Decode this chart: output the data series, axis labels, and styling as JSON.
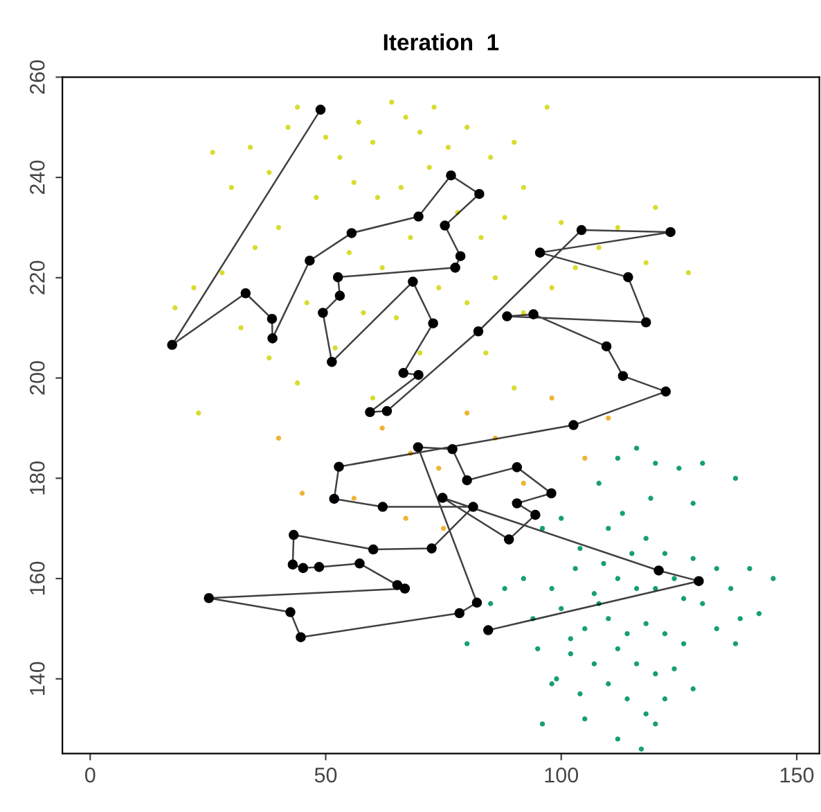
{
  "chart_data": {
    "type": "scatter",
    "title": "Iteration  1",
    "xlim": [
      -5.9,
      154.8
    ],
    "ylim": [
      125.1,
      260
    ],
    "xticks": [
      0,
      50,
      100,
      150
    ],
    "yticks": [
      140,
      160,
      180,
      200,
      220,
      240,
      260
    ],
    "grid": false,
    "legend": false,
    "series": [
      {
        "color": "#d9dc30",
        "x": [
          26,
          30,
          34,
          38,
          42,
          44,
          50,
          53,
          57,
          60,
          64,
          67,
          70,
          73,
          76,
          80,
          85,
          90,
          97,
          92,
          88,
          83,
          78,
          72,
          66,
          61,
          56,
          48,
          40,
          35,
          28,
          22,
          18,
          32,
          38,
          44,
          52,
          58,
          62,
          68,
          74,
          80,
          86,
          92,
          98,
          103,
          108,
          112,
          118,
          127,
          120,
          100,
          65,
          70,
          55,
          46,
          23,
          60,
          84,
          90
        ],
        "values": [
          245,
          238,
          246,
          241,
          250,
          254,
          248,
          244,
          251,
          247,
          255,
          252,
          249,
          254,
          246,
          250,
          244,
          247,
          254,
          238,
          232,
          228,
          233,
          242,
          238,
          236,
          239,
          236,
          230,
          226,
          221,
          218,
          214,
          210,
          204,
          199,
          206,
          213,
          222,
          228,
          218,
          215,
          220,
          213,
          218,
          222,
          226,
          230,
          223,
          221,
          234,
          231,
          212,
          205,
          225,
          215,
          193,
          196,
          205,
          198
        ]
      },
      {
        "color": "#f0b434",
        "x": [
          62,
          68,
          74,
          80,
          86,
          92,
          98,
          105,
          110,
          45,
          56,
          67,
          75,
          40
        ],
        "values": [
          190,
          185,
          182,
          193,
          188,
          179,
          196,
          184,
          192,
          177,
          176,
          172,
          170,
          188
        ]
      },
      {
        "color": "#17a06c",
        "x": [
          100,
          108,
          112,
          116,
          120,
          125,
          130,
          137,
          96,
          104,
          110,
          118,
          122,
          128,
          133,
          140,
          145,
          92,
          98,
          103,
          107,
          112,
          116,
          120,
          124,
          126,
          130,
          136,
          138,
          142,
          94,
          100,
          105,
          110,
          114,
          118,
          122,
          126,
          133,
          137,
          95,
          102,
          107,
          112,
          116,
          120,
          124,
          128,
          98,
          104,
          110,
          114,
          118,
          122,
          96,
          105,
          112,
          117,
          120,
          99,
          88,
          85,
          80,
          115,
          109,
          119,
          113,
          128,
          102,
          108
        ],
        "values": [
          172,
          179,
          184,
          186,
          183,
          182,
          183,
          180,
          170,
          166,
          170,
          168,
          165,
          164,
          162,
          162,
          160,
          160,
          158,
          162,
          157,
          160,
          158,
          158,
          160,
          156,
          155,
          158,
          152,
          153,
          152,
          154,
          150,
          152,
          149,
          151,
          149,
          147,
          150,
          147,
          146,
          145,
          143,
          146,
          143,
          141,
          142,
          138,
          139,
          137,
          139,
          136,
          133,
          136,
          131,
          132,
          128,
          126,
          131,
          140,
          158,
          155,
          147,
          165,
          163,
          176,
          173,
          175,
          148,
          155
        ]
      },
      {
        "type": "line",
        "color": "#000000",
        "marker": "circle",
        "x": [
          48.9,
          17.4,
          33.0,
          38.6,
          38.7,
          46.6,
          55.5,
          69.7,
          76.6,
          82.6,
          75.3,
          78.6,
          77.5,
          52.6,
          53.0,
          49.4,
          51.3,
          68.5,
          72.8,
          66.5,
          69.7,
          59.4,
          63.0,
          82.4,
          104.3,
          123.2,
          95.5,
          114.2,
          118.0,
          88.5,
          94.1,
          109.6,
          113.1,
          122.2,
          102.6,
          52.8,
          51.8,
          62.1,
          81.3,
          72.5,
          60.1,
          43.2,
          43.0,
          45.2,
          48.6,
          57.2,
          65.2,
          66.8,
          25.2,
          42.5,
          44.7,
          78.4,
          82.1,
          69.6,
          76.9,
          80.0,
          90.6,
          97.9,
          90.6,
          94.5,
          88.9,
          74.8,
          120.7,
          129.2,
          84.5
        ],
        "values": [
          253.5,
          206.6,
          216.9,
          211.8,
          207.9,
          223.4,
          228.9,
          232.2,
          240.4,
          236.7,
          230.4,
          224.3,
          222.0,
          220.1,
          216.4,
          213.0,
          203.2,
          219.2,
          210.9,
          201.0,
          200.6,
          193.2,
          193.4,
          209.3,
          229.5,
          229.1,
          225.0,
          220.1,
          211.1,
          212.3,
          212.7,
          206.3,
          200.4,
          197.3,
          190.6,
          182.3,
          175.9,
          174.3,
          174.3,
          166.0,
          165.8,
          168.7,
          162.8,
          162.1,
          162.3,
          163.0,
          158.7,
          158.0,
          156.1,
          153.3,
          148.3,
          153.1,
          155.2,
          186.2,
          185.8,
          179.6,
          182.2,
          177.0,
          175.0,
          172.7,
          167.8,
          176.1,
          161.6,
          159.5,
          149.7
        ]
      }
    ]
  }
}
